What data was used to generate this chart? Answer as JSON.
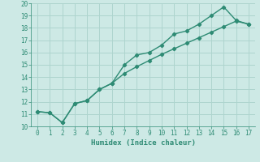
{
  "xlabel": "Humidex (Indice chaleur)",
  "xlim": [
    -0.5,
    17.5
  ],
  "ylim": [
    10,
    20
  ],
  "xticks": [
    0,
    1,
    2,
    3,
    4,
    5,
    6,
    7,
    8,
    9,
    10,
    11,
    12,
    13,
    14,
    15,
    16,
    17
  ],
  "yticks": [
    10,
    11,
    12,
    13,
    14,
    15,
    16,
    17,
    18,
    19,
    20
  ],
  "line1_x": [
    0,
    1,
    2,
    3,
    4,
    5,
    6,
    7,
    8,
    9,
    10,
    11,
    12,
    13,
    14,
    15,
    16,
    17
  ],
  "line1_y": [
    11.2,
    11.1,
    10.3,
    11.85,
    12.1,
    13.0,
    13.5,
    15.0,
    15.8,
    16.0,
    16.6,
    17.5,
    17.75,
    18.3,
    19.0,
    19.7,
    18.6,
    18.3
  ],
  "line2_x": [
    0,
    1,
    2,
    3,
    4,
    5,
    6,
    7,
    8,
    9,
    10,
    11,
    12,
    13,
    14,
    15,
    16,
    17
  ],
  "line2_y": [
    11.2,
    11.1,
    10.3,
    11.85,
    12.1,
    13.0,
    13.5,
    14.3,
    14.85,
    15.35,
    15.85,
    16.3,
    16.75,
    17.2,
    17.65,
    18.1,
    18.55,
    18.3
  ],
  "line_color": "#2e8b74",
  "bg_color": "#cde9e5",
  "grid_color": "#aed4ce",
  "marker": "D",
  "marker_size": 2.2,
  "line_width": 1.0
}
